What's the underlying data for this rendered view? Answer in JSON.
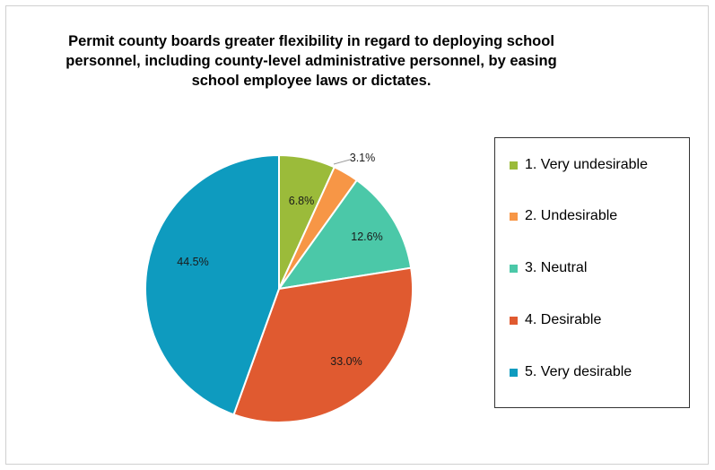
{
  "chart_data": {
    "type": "pie",
    "title": "Permit county boards greater flexibility in regard to deploying school personnel, including county-level administrative personnel, by easing school employee laws or dictates.",
    "categories": [
      "1. Very undesirable",
      "2. Undesirable",
      "3. Neutral",
      "4. Desirable",
      "5. Very desirable"
    ],
    "values": [
      6.8,
      3.1,
      12.6,
      33.0,
      44.5
    ],
    "labels": [
      "6.8%",
      "3.1%",
      "12.6%",
      "33.0%",
      "44.5%"
    ],
    "colors": [
      "#9bbb3a",
      "#f79646",
      "#4bc8a8",
      "#e05a30",
      "#0e9bbf"
    ],
    "legend_position": "right"
  }
}
